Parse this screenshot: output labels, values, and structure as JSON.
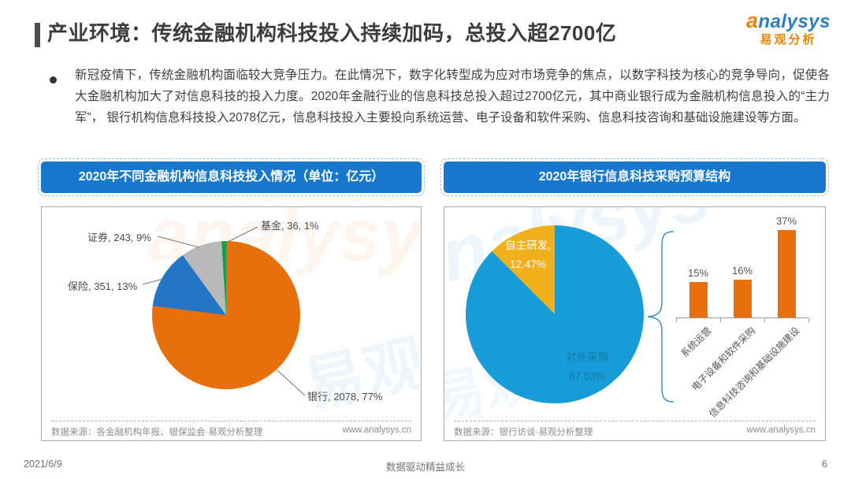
{
  "header": {
    "title": "产业环境：传统金融机构科技投入持续加码，总投入超2700亿",
    "logo": {
      "brand": "analysys",
      "brand_cn": "易观分析"
    }
  },
  "summary": {
    "text": "新冠疫情下，传统金融机构面临较大竞争压力。在此情况下，数字化转型成为应对市场竞争的焦点，以数字科技为核心的竞争导向，促使各大金融机构加大了对信息科技的投入力度。2020年金融行业的信息科技总投入超过2700亿元，其中商业银行成为金融机构信息投入的“主力军”， 银行机构信息科技投入2078亿元，信息科技投入主要投向系统运营、电子设备和软件采购、信息科技咨询和基础设施建设等方面。"
  },
  "watermark": {
    "text_en": "analysys",
    "text_cn": "易观"
  },
  "colors": {
    "banner_blue": "#1878CE",
    "logo_blue": "#2D7DC1",
    "logo_orange": "#F08300"
  },
  "chart_data": [
    {
      "type": "pie",
      "title": "2020年不同金融机构信息科技投入情况（单位：亿元）",
      "unit": "亿元",
      "clockwise_from_top": true,
      "slices": [
        {
          "label": "银行",
          "value": 2078,
          "pct": 77,
          "label_text": "银行, 2078, 77%",
          "color": "#E8700C"
        },
        {
          "label": "保险",
          "value": 351,
          "pct": 13,
          "label_text": "保险, 351, 13%",
          "color": "#2475C5"
        },
        {
          "label": "证券",
          "value": 243,
          "pct": 9,
          "label_text": "证券, 243, 9%",
          "color": "#B9B9B9"
        },
        {
          "label": "基金",
          "value": 36,
          "pct": 1,
          "label_text": "基金, 36, 1%",
          "color": "#13A24B"
        }
      ],
      "source": "数据来源：各金融机构年报、银保监会·易观分析整理",
      "website": "www.analysys.cn"
    },
    {
      "type": "pie+bar",
      "title": "2020年银行信息科技采购预算结构",
      "pie": {
        "clockwise_from_top": true,
        "slices": [
          {
            "label": "对外采购",
            "pct": 87.53,
            "label_line1": "对外采购",
            "label_line2": "87.53%",
            "color": "#189CD8"
          },
          {
            "label": "自主研发",
            "pct": 12.47,
            "label_line1": "自主研发,",
            "label_line2": "12.47%",
            "color": "#F0B11C"
          }
        ]
      },
      "bar": {
        "categories": [
          "系统运营",
          "电子设备和软件采购",
          "信息科技咨询和基础设施建设"
        ],
        "values": [
          15,
          16,
          37
        ],
        "value_labels": [
          "15%",
          "16%",
          "37%"
        ],
        "unit": "%",
        "color": "#E8700C"
      },
      "source": "数据来源：银行访谈·易观分析整理",
      "website": "www.analysys.cn"
    }
  ],
  "footer": {
    "date": "2021/6/9",
    "slogan": "数据驱动精益成长",
    "page": "6"
  }
}
